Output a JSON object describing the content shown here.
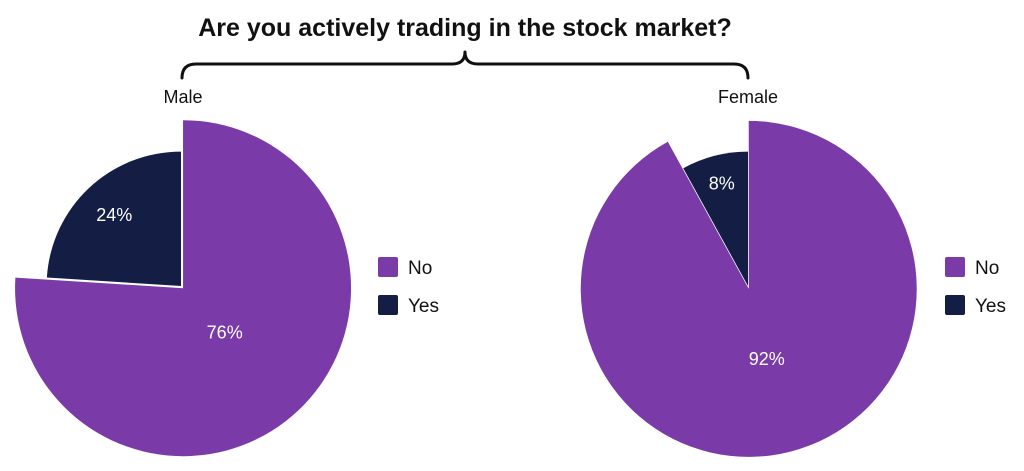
{
  "title": "Are you actively trading in the stock market?",
  "colors": {
    "No": "#7a3aa8",
    "Yes": "#141e44",
    "label_on_no": "#ffffff",
    "label_on_yes": "#ffffff"
  },
  "chart_data": [
    {
      "type": "pie",
      "title": "Male",
      "labels": [
        "No",
        "Yes"
      ],
      "values": [
        76,
        24
      ],
      "value_labels": [
        "76%",
        "24%"
      ],
      "legend": [
        "No",
        "Yes"
      ],
      "legend_position": "right",
      "exploded": "No"
    },
    {
      "type": "pie",
      "title": "Female",
      "labels": [
        "No",
        "Yes"
      ],
      "values": [
        92,
        8
      ],
      "value_labels": [
        "92%",
        "8%"
      ],
      "legend": [
        "No",
        "Yes"
      ],
      "legend_position": "right",
      "exploded": "No"
    }
  ]
}
